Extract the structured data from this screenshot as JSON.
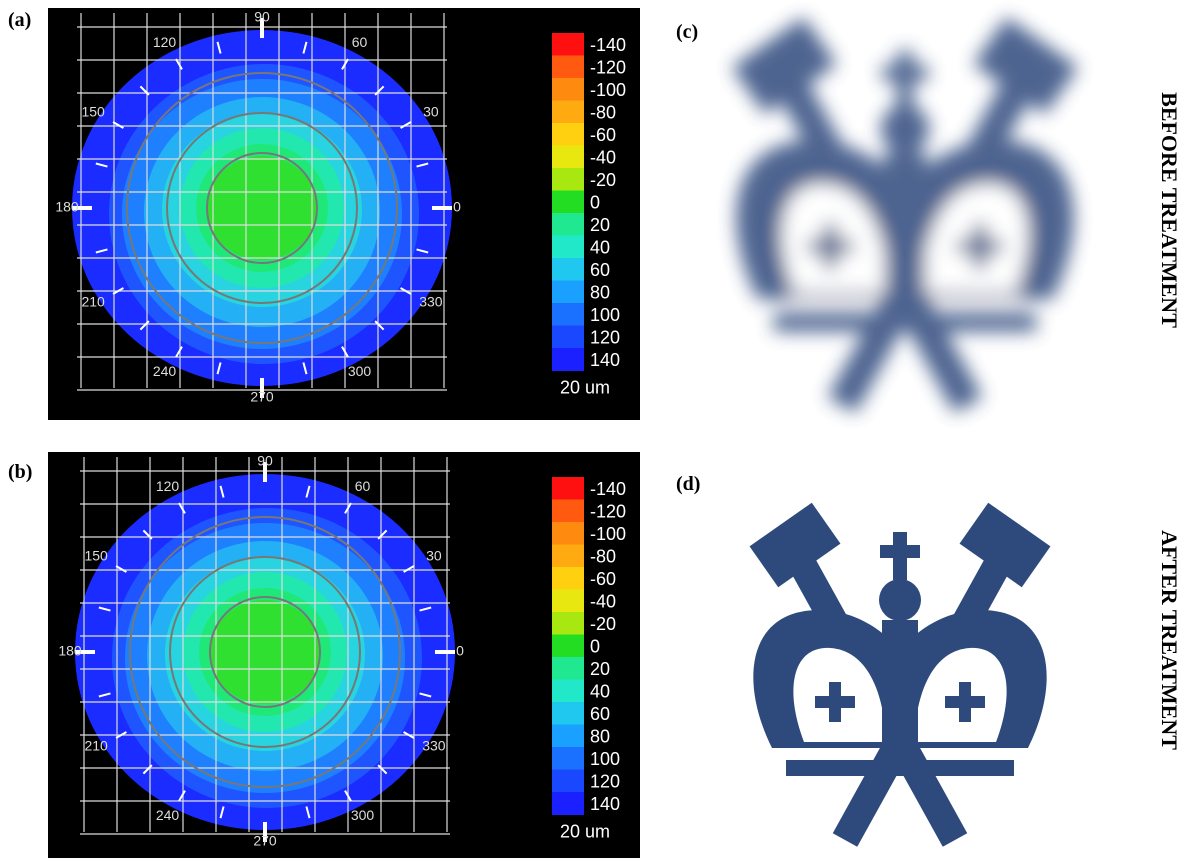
{
  "panels": [
    {
      "label": "(a)",
      "angle_labels": [
        "90",
        "120",
        "60",
        "150",
        "30",
        "180",
        "0",
        "210",
        "330",
        "240",
        "300",
        "270"
      ],
      "scale_labels": [
        "-140",
        "-120",
        "-100",
        "-80",
        "-60",
        "-40",
        "-20",
        "0",
        "20",
        "40",
        "60",
        "80",
        "100",
        "120",
        "140"
      ],
      "unit": "20 um"
    },
    {
      "label": "(b)",
      "angle_labels": [
        "90",
        "120",
        "60",
        "150",
        "30",
        "180",
        "0",
        "210",
        "330",
        "240",
        "300",
        "270"
      ],
      "scale_labels": [
        "-140",
        "-120",
        "-100",
        "-80",
        "-60",
        "-40",
        "-20",
        "0",
        "20",
        "40",
        "60",
        "80",
        "100",
        "120",
        "140"
      ],
      "unit": "20 um"
    },
    {
      "label": "(c)",
      "caption": "BEFORE TREATMENT"
    },
    {
      "label": "(d)",
      "caption": "AFTER TREATMENT"
    }
  ]
}
